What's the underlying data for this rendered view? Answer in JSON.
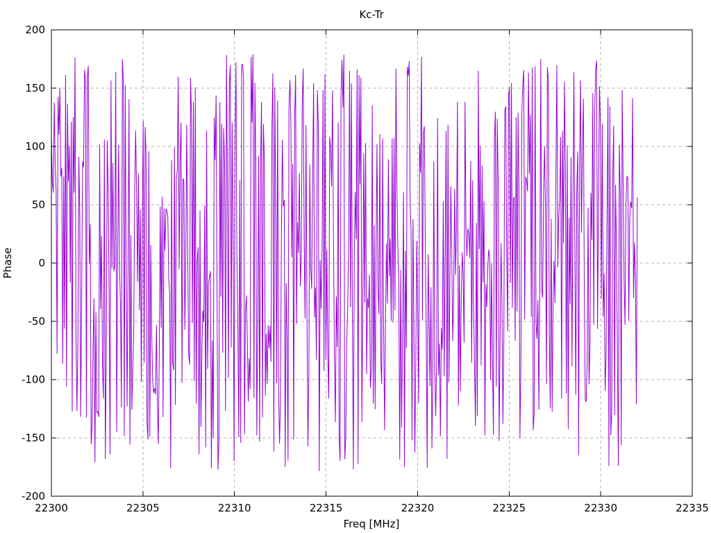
{
  "window": {
    "background": "#ffffff"
  },
  "chart_data": {
    "type": "line",
    "title": "Kc-Tr",
    "xlabel": "Freq [MHz]",
    "ylabel": "Phase",
    "xlim": [
      22300,
      22335
    ],
    "ylim": [
      -200,
      200
    ],
    "xticks": [
      22300,
      22305,
      22310,
      22315,
      22320,
      22325,
      22330,
      22335
    ],
    "yticks": [
      -200,
      -150,
      -100,
      -50,
      0,
      50,
      100,
      150,
      200
    ],
    "grid": true,
    "grid_style": "dashed",
    "legend": false,
    "axis_color": "#000000",
    "grid_color": "#b0b0b0",
    "text_color": "#000000",
    "series": [
      {
        "name": "Kc-Tr",
        "color": "#9400d3",
        "style": "lines",
        "line_width": 1,
        "x_start": 22300,
        "x_end": 22332,
        "n_points": 620,
        "y_model": "wrapped-phase noise, uniform random in [y_min, y_max]",
        "y_min": -180,
        "y_max": 180,
        "seed": 20230517
      }
    ]
  }
}
